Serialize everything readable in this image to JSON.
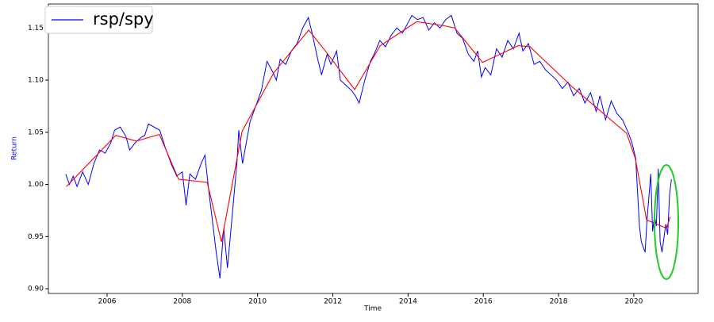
{
  "chart_data": {
    "type": "line",
    "xlabel": "Time",
    "ylabel": "Return",
    "xlim": [
      2004.44,
      2021.71
    ],
    "ylim": [
      0.8955,
      1.173
    ],
    "xticks": [
      2006,
      2008,
      2010,
      2012,
      2014,
      2016,
      2018,
      2020
    ],
    "yticks": [
      {
        "value": 0.9,
        "label": "0.90"
      },
      {
        "value": 0.95,
        "label": "0.95"
      },
      {
        "value": 1.0,
        "label": "1.00"
      },
      {
        "value": 1.05,
        "label": "1.05"
      },
      {
        "value": 1.1,
        "label": "1.10"
      },
      {
        "value": 1.15,
        "label": "1.15"
      }
    ],
    "legend": "upper left",
    "series": [
      {
        "name": "rsp/spy",
        "color": "#0000ff",
        "x": [
          2004.9,
          2005.0,
          2005.1,
          2005.2,
          2005.35,
          2005.5,
          2005.65,
          2005.8,
          2005.95,
          2006.1,
          2006.2,
          2006.35,
          2006.5,
          2006.6,
          2006.75,
          2006.9,
          2007.0,
          2007.1,
          2007.25,
          2007.4,
          2007.55,
          2007.7,
          2007.85,
          2008.0,
          2008.1,
          2008.2,
          2008.35,
          2008.5,
          2008.6,
          2008.7,
          2008.8,
          2008.9,
          2009.0,
          2009.1,
          2009.2,
          2009.35,
          2009.45,
          2009.5,
          2009.6,
          2009.7,
          2009.8,
          2009.95,
          2010.1,
          2010.25,
          2010.4,
          2010.5,
          2010.6,
          2010.75,
          2010.9,
          2011.05,
          2011.2,
          2011.35,
          2011.45,
          2011.6,
          2011.7,
          2011.85,
          2011.95,
          2012.1,
          2012.2,
          2012.35,
          2012.5,
          2012.6,
          2012.7,
          2012.85,
          2013.0,
          2013.1,
          2013.25,
          2013.4,
          2013.55,
          2013.7,
          2013.85,
          2014.0,
          2014.1,
          2014.25,
          2014.4,
          2014.55,
          2014.7,
          2014.85,
          2015.0,
          2015.15,
          2015.3,
          2015.45,
          2015.6,
          2015.75,
          2015.85,
          2015.95,
          2016.05,
          2016.2,
          2016.35,
          2016.5,
          2016.65,
          2016.8,
          2016.95,
          2017.05,
          2017.2,
          2017.35,
          2017.5,
          2017.65,
          2017.8,
          2017.95,
          2018.1,
          2018.25,
          2018.4,
          2018.55,
          2018.7,
          2018.85,
          2019.0,
          2019.1,
          2019.25,
          2019.4,
          2019.55,
          2019.7,
          2019.85,
          2019.95,
          2020.05,
          2020.15,
          2020.2,
          2020.3,
          2020.35,
          2020.45,
          2020.5,
          2020.55,
          2020.6,
          2020.65,
          2020.7,
          2020.75,
          2020.85,
          2020.9,
          2020.95,
          2021.0
        ],
        "values": [
          1.01,
          1.0,
          1.008,
          0.998,
          1.012,
          1.0,
          1.02,
          1.033,
          1.03,
          1.04,
          1.052,
          1.055,
          1.046,
          1.033,
          1.04,
          1.045,
          1.047,
          1.058,
          1.055,
          1.052,
          1.035,
          1.02,
          1.008,
          1.012,
          0.98,
          1.01,
          1.005,
          1.02,
          1.028,
          0.995,
          0.965,
          0.935,
          0.91,
          0.958,
          0.92,
          0.98,
          1.02,
          1.052,
          1.02,
          1.04,
          1.06,
          1.075,
          1.09,
          1.118,
          1.108,
          1.1,
          1.12,
          1.115,
          1.128,
          1.135,
          1.15,
          1.16,
          1.145,
          1.12,
          1.105,
          1.125,
          1.115,
          1.128,
          1.1,
          1.095,
          1.09,
          1.085,
          1.078,
          1.1,
          1.118,
          1.125,
          1.138,
          1.132,
          1.143,
          1.15,
          1.145,
          1.155,
          1.162,
          1.158,
          1.16,
          1.148,
          1.155,
          1.15,
          1.158,
          1.162,
          1.145,
          1.14,
          1.125,
          1.118,
          1.128,
          1.103,
          1.112,
          1.105,
          1.13,
          1.122,
          1.138,
          1.13,
          1.145,
          1.128,
          1.135,
          1.115,
          1.118,
          1.11,
          1.105,
          1.1,
          1.092,
          1.098,
          1.085,
          1.092,
          1.078,
          1.088,
          1.07,
          1.085,
          1.062,
          1.08,
          1.068,
          1.062,
          1.05,
          1.04,
          1.025,
          0.96,
          0.945,
          0.935,
          0.965,
          1.01,
          0.955,
          0.97,
          0.96,
          1.015,
          0.945,
          0.935,
          0.962,
          0.952,
          0.99,
          1.005
        ]
      },
      {
        "color": "#ff0000",
        "x": [
          2004.92,
          2006.23,
          2006.78,
          2007.39,
          2007.9,
          2008.66,
          2009.04,
          2009.59,
          2010.43,
          2011.36,
          2011.8,
          2012.58,
          2013.26,
          2014.23,
          2014.97,
          2015.24,
          2015.98,
          2016.93,
          2017.24,
          2018.38,
          2019.81,
          2020.04,
          2020.34,
          2020.87,
          2020.97
        ],
        "values": [
          0.998,
          1.047,
          1.0415,
          1.048,
          1.005,
          1.002,
          0.945,
          1.051,
          1.107,
          1.148,
          1.128,
          1.091,
          1.133,
          1.156,
          1.152,
          1.15,
          1.117,
          1.133,
          1.132,
          1.093,
          1.049,
          1.025,
          0.966,
          0.958,
          0.969
        ]
      }
    ]
  }
}
